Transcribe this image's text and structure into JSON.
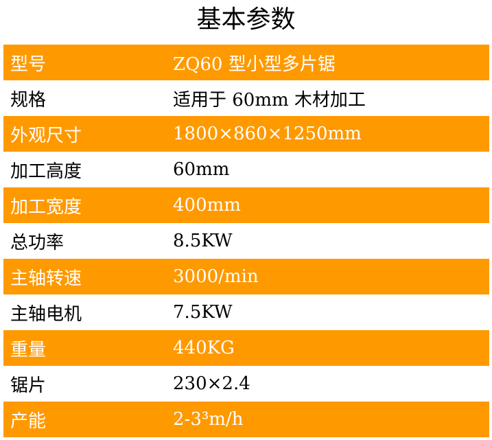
{
  "title": "基本参数",
  "accent_color": "#ff9900",
  "rows": [
    {
      "label": "型号",
      "value": "ZQ60 型小型多片锯"
    },
    {
      "label": "规格",
      "value": "适用于 60mm 木材加工"
    },
    {
      "label": "外观尺寸",
      "value": "1800×860×1250mm"
    },
    {
      "label": "加工高度",
      "value": "60mm"
    },
    {
      "label": "加工宽度",
      "value": "400mm"
    },
    {
      "label": "总功率",
      "value": "8.5KW"
    },
    {
      "label": "主轴转速",
      "value": "3000/min"
    },
    {
      "label": "主轴电机",
      "value": "7.5KW"
    },
    {
      "label": "重量",
      "value": "440KG"
    },
    {
      "label": "锯片",
      "value": "230×2.4"
    },
    {
      "label": "产能",
      "value": "2-3³m/h"
    }
  ]
}
